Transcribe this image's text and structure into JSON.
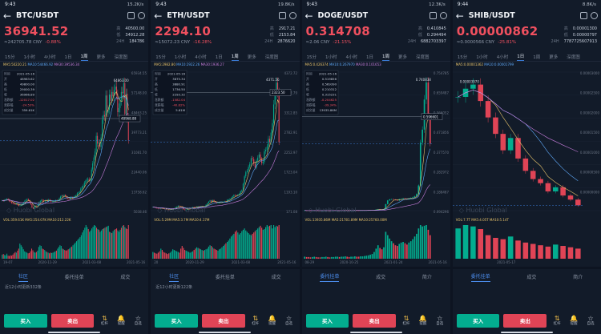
{
  "colors": {
    "up": "#03ad8f",
    "down": "#e04456",
    "price": "#f0505f",
    "ma5": "#e8c36b",
    "ma10": "#5fa8f7",
    "ma30": "#c77ddc"
  },
  "timeframes": [
    "15分",
    "1小时",
    "4小时",
    "1日",
    "1周",
    "更多",
    "深度图"
  ],
  "bottom": {
    "buy": "买入",
    "sell": "卖出",
    "icons": [
      {
        "name": "杠杆",
        "glyph": "⇅"
      },
      {
        "name": "提醒",
        "glyph": "🔔"
      },
      {
        "name": "自选",
        "glyph": "☆"
      }
    ]
  },
  "panels": [
    {
      "time": "9:43",
      "net": "15.2K/s",
      "battery": "90",
      "pair": "BTC/USDT",
      "price": "36941.52",
      "cny": "≈242705.78 CNY",
      "change": "-0.88%",
      "stats": [
        [
          "高",
          "40500.00"
        ],
        [
          "低",
          "34912.28"
        ],
        [
          "24H",
          "184786"
        ]
      ],
      "active_tf": "1周",
      "ma_text": {
        "ma5": "MA5:50220.21",
        "ma10": "MA10:54466.92",
        "ma30": "MA30:39536.34"
      },
      "vol_text": "VOL:359.61K  MA5:254.07K  MA10:212.22K",
      "dates": [
        "19-07",
        "2020-11-29",
        "2021-03-08",
        "2021-05-16"
      ],
      "tabs": [
        "社区",
        "委托挂单",
        "成交"
      ],
      "active_tab": 0,
      "note": "近12小时更新332条",
      "axis": [
        "65934.55",
        "57148.00",
        "48463.25",
        "39773.21",
        "31081.70",
        "22440.06",
        "13758.62",
        "5038.46"
      ],
      "marker": "48968.88",
      "peak": "64863.00",
      "info": [
        [
          "时间",
          "2021-05-16"
        ],
        [
          "开",
          "48983.62"
        ],
        [
          "高",
          "49800.00"
        ],
        [
          "低",
          "29000.39"
        ],
        [
          "收",
          "36966.89"
        ],
        [
          "涨跌额",
          "-12017.02"
        ],
        [
          "涨跌幅",
          "-24.53%"
        ],
        [
          "成交量",
          "359.61K"
        ]
      ],
      "chart_data": {
        "type": "candlestick",
        "x_start": "2019-07",
        "x_end": "2021-05-16",
        "closes": [
          9600,
          9500,
          9800,
          10100,
          10300,
          10000,
          9300,
          9100,
          8500,
          8300,
          8100,
          7900,
          8200,
          7600,
          7200,
          7400,
          7500,
          8200,
          8700,
          9500,
          9900,
          10200,
          9700,
          8700,
          7900,
          6500,
          5900,
          6800,
          7200,
          6900,
          7600,
          8800,
          9400,
          9900,
          9700,
          9200,
          9500,
          9800,
          9300,
          10000,
          9600,
          9100,
          9200,
          9300,
          9400,
          9700,
          9500,
          9800,
          10600,
          11400,
          11800,
          11500,
          12000,
          11600,
          10700,
          10500,
          10300,
          10800,
          11000,
          10900,
          11200,
          11500,
          11900,
          12900,
          13200,
          13500,
          15000,
          15700,
          16300,
          17800,
          18300,
          19100,
          19400,
          18700,
          19000,
          23700,
          26500,
          29200,
          32000,
          39000,
          35500,
          36000,
          34000,
          38300,
          46300,
          48500,
          47800,
          57400,
          49600,
          50900,
          57800,
          55000,
          59000,
          57100,
          60000,
          61400,
          57800,
          49800,
          51700,
          55000,
          59000,
          58400,
          63000,
          49000,
          58200,
          46900,
          36966
        ]
      },
      "vol_data": [
        12,
        14,
        11,
        10,
        15,
        9,
        8,
        10,
        9,
        12,
        16,
        20,
        18,
        24,
        30,
        45,
        40,
        35,
        28,
        22,
        20,
        18,
        16,
        17,
        22,
        30,
        25,
        20,
        18,
        20,
        24,
        35,
        40,
        38,
        30,
        28,
        26,
        22,
        20,
        18,
        16,
        18,
        17,
        18,
        20,
        22,
        24,
        30,
        35,
        40,
        38,
        30,
        28,
        26,
        24,
        25,
        28,
        30,
        34,
        36,
        40,
        44,
        48,
        52,
        56,
        60,
        64,
        70,
        78,
        85,
        92,
        100,
        94,
        88,
        80,
        84,
        90,
        95,
        100,
        98,
        92,
        88,
        86,
        80,
        84,
        88,
        90,
        92,
        94,
        96,
        98,
        80,
        78,
        76,
        82,
        86,
        88,
        90,
        84,
        80,
        86,
        92,
        98,
        100,
        94,
        90,
        88,
        100
      ]
    },
    {
      "time": "9:43",
      "net": "19.8K/s",
      "battery": "90",
      "pair": "ETH/USDT",
      "price": "2294.10",
      "cny": "≈15072.23 CNY",
      "change": "-16.28%",
      "stats": [
        [
          "高",
          "2917.21"
        ],
        [
          "低",
          "2153.84"
        ],
        [
          "24H",
          "2876620"
        ]
      ],
      "active_tf": "1周",
      "ma_text": {
        "ma5": "MA5:2982.80",
        "ma10": "MA10:2922.26",
        "ma30": "MA30:1936.27"
      },
      "vol_text": "VOL:5.29M  MA5:3.7M  MA10:4.17M",
      "dates": [
        "20",
        "2020-11-29",
        "2021-03-08",
        "2021-05-16"
      ],
      "tabs": [
        "社区",
        "委托挂单",
        "成交"
      ],
      "active_tab": 0,
      "note": "近12小时更新122条",
      "axis": [
        "4372.72",
        "3842.79",
        "3312.85",
        "2782.91",
        "2252.97",
        "1723.04",
        "1193.10",
        "171.08"
      ],
      "marker": "2323.50",
      "peak": "4371.56",
      "info": [
        [
          "时间",
          "2021-05-16"
        ],
        [
          "开",
          "3875.34"
        ],
        [
          "高",
          "3880.91"
        ],
        [
          "低",
          "1736.50"
        ],
        [
          "收",
          "2293.32"
        ],
        [
          "涨跌额",
          "-1582.04"
        ],
        [
          "涨跌幅",
          "-40.82%"
        ],
        [
          "成交量",
          "5.61M"
        ]
      ],
      "chart_data": {
        "type": "candlestick",
        "x_start": "2019",
        "x_end": "2021-05-16",
        "closes": [
          220,
          210,
          190,
          180,
          175,
          170,
          185,
          180,
          160,
          150,
          140,
          135,
          130,
          140,
          150,
          165,
          175,
          210,
          230,
          260,
          245,
          230,
          200,
          140,
          120,
          130,
          170,
          180,
          185,
          200,
          215,
          210,
          200,
          230,
          240,
          235,
          240,
          245,
          230,
          235,
          290,
          340,
          390,
          430,
          380,
          440,
          390,
          370,
          340,
          350,
          360,
          375,
          380,
          385,
          400,
          390,
          450,
          460,
          480,
          510,
          560,
          600,
          590,
          580,
          610,
          640,
          720,
          750,
          960,
          1200,
          1330,
          1380,
          1500,
          1600,
          1780,
          1750,
          1600,
          1480,
          1700,
          1800,
          1900,
          1750,
          1620,
          1660,
          2000,
          2050,
          2150,
          2400,
          2300,
          2600,
          2900,
          3500,
          3800,
          4200,
          3880,
          2294
        ]
      },
      "vol_data": [
        20,
        18,
        16,
        15,
        18,
        22,
        30,
        26,
        20,
        18,
        16,
        14,
        16,
        18,
        22,
        28,
        26,
        24,
        22,
        20,
        18,
        30,
        38,
        32,
        26,
        24,
        22,
        20,
        18,
        20,
        22,
        26,
        30,
        34,
        32,
        30,
        28,
        26,
        24,
        26,
        28,
        30,
        36,
        40,
        38,
        34,
        30,
        28,
        26,
        24,
        28,
        30,
        34,
        38,
        42,
        46,
        50,
        54,
        60,
        66,
        70,
        74,
        80,
        84,
        78,
        72,
        76,
        82,
        86,
        90,
        84,
        80,
        76,
        72,
        70,
        74,
        78,
        82,
        86,
        90,
        94,
        98,
        92,
        86,
        88,
        94,
        100,
        96,
        98,
        100,
        90,
        100,
        94,
        98,
        96,
        100
      ]
    },
    {
      "time": "9:43",
      "net": "12.3K/s",
      "battery": "90",
      "pair": "DOGE/USDT",
      "price": "0.314708",
      "cny": "≈2.06 CNY",
      "change": "-21.15%",
      "stats": [
        [
          "高",
          "0.410845"
        ],
        [
          "低",
          "0.294494"
        ],
        [
          "24H",
          "6882703397"
        ]
      ],
      "active_tf": "1周",
      "ma_text": {
        "ma5": "MA5:0.426374",
        "ma10": "MA10:0.267970",
        "ma30": "MA30:0.101653"
      },
      "vol_text": "VOL:13935.86M  MA5:21781.89M  MA10:25760.00M",
      "dates": [
        "08-29",
        "2020-10-25",
        "2021-01-24",
        "2021-05-16"
      ],
      "tabs": [
        "委托挂单",
        "成交",
        "简介"
      ],
      "active_tab": 0,
      "note": "",
      "axis": [
        "0.754785",
        "0.659487",
        "0.566052",
        "0.471856",
        "0.377570",
        "0.282972",
        "0.188487",
        "0.094296"
      ],
      "marker": "0.596601",
      "peak": "0.740838",
      "info": [
        [
          "时间",
          "2021-05-16"
        ],
        [
          "开",
          "0.519856"
        ],
        [
          "高",
          "0.569390"
        ],
        [
          "低",
          "0.210312"
        ],
        [
          "收",
          "0.315231"
        ],
        [
          "涨跌额",
          "-0.204625"
        ],
        [
          "涨跌幅",
          "-39.34%"
        ],
        [
          "成交量",
          "13935.86M"
        ]
      ],
      "chart_data": {
        "type": "candlestick",
        "x_start": "2020-08-29",
        "x_end": "2021-05-16",
        "closes": [
          0.0035,
          0.0034,
          0.0033,
          0.0032,
          0.0033,
          0.0034,
          0.0032,
          0.0031,
          0.003,
          0.0031,
          0.0032,
          0.0033,
          0.0032,
          0.0031,
          0.0032,
          0.0033,
          0.0034,
          0.0035,
          0.0034,
          0.0035,
          0.0036,
          0.0037,
          0.0036,
          0.0035,
          0.0036,
          0.0037,
          0.0038,
          0.0037,
          0.0036,
          0.0037,
          0.0038,
          0.0039,
          0.004,
          0.0042,
          0.0045,
          0.005,
          0.006,
          0.008,
          0.01,
          0.009,
          0.0085,
          0.01,
          0.033,
          0.05,
          0.055,
          0.056,
          0.054,
          0.052,
          0.05,
          0.056,
          0.058,
          0.06,
          0.058,
          0.056,
          0.06,
          0.062,
          0.065,
          0.07,
          0.08,
          0.12,
          0.32,
          0.38,
          0.52,
          0.6,
          0.44,
          0.3147
        ]
      },
      "vol_data": [
        6,
        5,
        5,
        4,
        5,
        6,
        5,
        4,
        4,
        5,
        5,
        6,
        5,
        4,
        5,
        5,
        6,
        6,
        5,
        6,
        6,
        7,
        6,
        5,
        6,
        6,
        7,
        6,
        6,
        7,
        7,
        8,
        9,
        10,
        12,
        14,
        20,
        30,
        40,
        32,
        28,
        34,
        80,
        70,
        60,
        52,
        46,
        40,
        38,
        44,
        48,
        50,
        46,
        42,
        48,
        52,
        58,
        66,
        74,
        90,
        100,
        96,
        98,
        100,
        86,
        70
      ]
    },
    {
      "time": "9:44",
      "net": "8.8K/s",
      "battery": "90",
      "pair": "SHIB/USDT",
      "price": "0.00000862",
      "cny": "≈0.0000566 CNY",
      "change": "-25.81%",
      "stats": [
        [
          "高",
          "0.00001300"
        ],
        [
          "低",
          "0.00000797"
        ],
        [
          "24H",
          "7787725607913"
        ]
      ],
      "active_tf": "1日",
      "ma_text": {
        "ma5": "MA5:0.00001362",
        "ma10": "MA10:0.00001799",
        "ma30": ""
      },
      "vol_text": "VOL:7.7T  MA5:4.05T  MA10:5.14T",
      "dates": [
        "",
        "2021-05-17",
        "",
        ""
      ],
      "tabs": [
        "委托挂单",
        "成交",
        "简介"
      ],
      "active_tab": 0,
      "note": "",
      "axis": [
        "0.00003000",
        "0.00002500",
        "0.00002000",
        "0.00001500",
        "0.00001000",
        "0.00000500",
        "0.00000000",
        ""
      ],
      "marker": "",
      "peak": "0.00003970",
      "info": [],
      "chart_data": {
        "type": "candlestick",
        "x_start": "2021-05-10",
        "x_end": "2021-05-17",
        "closes": [
          3.5e-05,
          3.7e-05,
          3.8e-05,
          3.4e-05,
          3e-05,
          2.6e-05,
          2.2e-05,
          2.5e-05,
          2e-05,
          1.7e-05,
          1.5e-05,
          1.4e-05,
          1.2e-05,
          1.3e-05,
          1.1e-05,
          1e-05,
          8.6e-06
        ]
      },
      "vol_data": [
        90,
        100,
        96,
        88,
        70,
        62,
        58,
        66,
        54,
        48,
        44,
        40,
        36,
        42,
        38,
        34,
        30
      ]
    }
  ]
}
